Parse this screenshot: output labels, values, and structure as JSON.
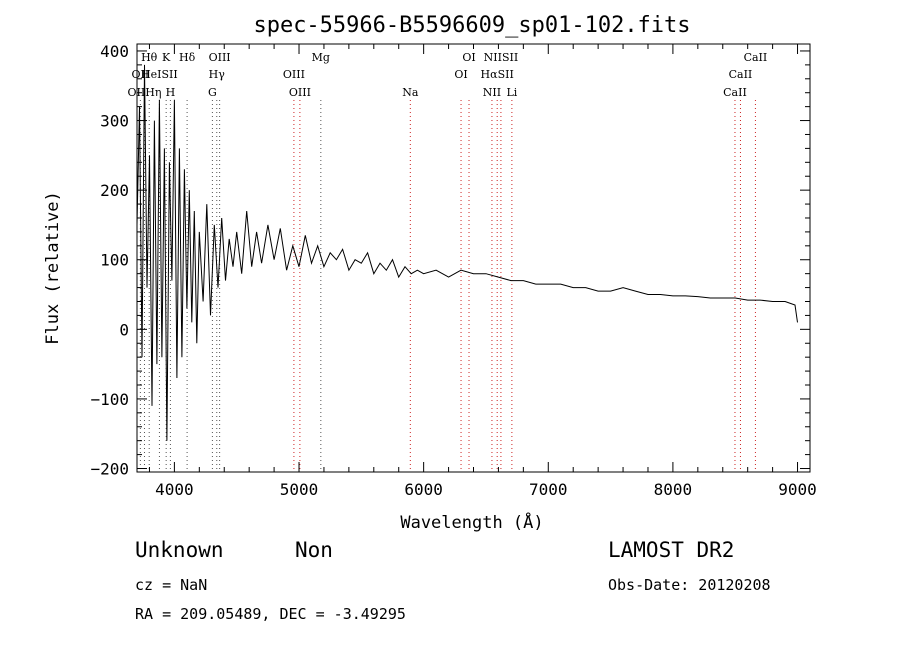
{
  "chart_data": {
    "type": "line",
    "title": "spec-55966-B5596609_sp01-102.fits",
    "xlabel": "Wavelength (Å)",
    "ylabel": "Flux (relative)",
    "xlim": [
      3700,
      9100
    ],
    "ylim": [
      -205,
      410
    ],
    "xticks": [
      4000,
      5000,
      6000,
      7000,
      8000,
      9000
    ],
    "yticks": [
      -200,
      -100,
      0,
      100,
      200,
      300,
      400
    ],
    "grid": false,
    "series": [
      {
        "x": [
          3700,
          3720,
          3740,
          3760,
          3780,
          3800,
          3820,
          3840,
          3860,
          3880,
          3900,
          3920,
          3940,
          3960,
          3980,
          4000,
          4020,
          4040,
          4060,
          4080,
          4100,
          4120,
          4140,
          4160,
          4180,
          4200,
          4230,
          4260,
          4290,
          4320,
          4350,
          4380,
          4410,
          4440,
          4470,
          4500,
          4540,
          4580,
          4620,
          4660,
          4700,
          4750,
          4800,
          4850,
          4900,
          4950,
          5000,
          5050,
          5100,
          5150,
          5200,
          5250,
          5300,
          5350,
          5400,
          5450,
          5500,
          5550,
          5600,
          5650,
          5700,
          5750,
          5800,
          5850,
          5900,
          5950,
          6000,
          6100,
          6200,
          6300,
          6400,
          6500,
          6600,
          6700,
          6800,
          6900,
          7000,
          7100,
          7200,
          7300,
          7400,
          7500,
          7600,
          7700,
          7800,
          7900,
          8000,
          8100,
          8200,
          8300,
          8400,
          8500,
          8600,
          8700,
          8800,
          8900,
          8980,
          9000
        ],
        "values": [
          150,
          320,
          -40,
          380,
          60,
          250,
          -110,
          300,
          -50,
          330,
          -40,
          260,
          -160,
          240,
          70,
          330,
          -70,
          260,
          -40,
          230,
          30,
          200,
          10,
          170,
          -20,
          140,
          40,
          180,
          20,
          150,
          60,
          160,
          70,
          130,
          90,
          140,
          80,
          170,
          90,
          140,
          95,
          150,
          100,
          145,
          85,
          120,
          90,
          135,
          95,
          120,
          90,
          110,
          100,
          115,
          85,
          100,
          95,
          110,
          80,
          95,
          85,
          100,
          75,
          90,
          80,
          85,
          80,
          85,
          75,
          85,
          80,
          80,
          75,
          70,
          70,
          65,
          65,
          65,
          60,
          60,
          55,
          55,
          60,
          55,
          50,
          50,
          48,
          48,
          47,
          45,
          45,
          45,
          42,
          42,
          40,
          40,
          35,
          10
        ]
      }
    ],
    "spectral_lines": [
      {
        "name": "Hθ",
        "x": 3798,
        "row": 0,
        "color": "#555555"
      },
      {
        "name": "K",
        "x": 3934,
        "row": 0,
        "color": "#555555"
      },
      {
        "name": "Hδ",
        "x": 4102,
        "row": 0,
        "color": "#555555"
      },
      {
        "name": "OIII",
        "x": 4363,
        "row": 0,
        "color": "#555555"
      },
      {
        "name": "Mg",
        "x": 5175,
        "row": 0,
        "color": "#555555"
      },
      {
        "name": "OI",
        "x": 6364,
        "row": 0,
        "color": "#cc2222"
      },
      {
        "name": "NIISII",
        "x": 6620,
        "row": 0,
        "color": "#cc2222"
      },
      {
        "name": "CaII",
        "x": 8662,
        "row": 0,
        "color": "#cc2222"
      },
      {
        "name": "OII",
        "x": 3727,
        "row": 1,
        "color": "#555555"
      },
      {
        "name": "HeISII",
        "x": 3880,
        "row": 1,
        "color": "#555555"
      },
      {
        "name": "Hγ",
        "x": 4340,
        "row": 1,
        "color": "#555555"
      },
      {
        "name": "OIII",
        "x": 4959,
        "row": 1,
        "color": "#cc2222"
      },
      {
        "name": "OI",
        "x": 6300,
        "row": 1,
        "color": "#cc2222"
      },
      {
        "name": "HαSII",
        "x": 6590,
        "row": 1,
        "color": "#cc2222"
      },
      {
        "name": "CaII",
        "x": 8542,
        "row": 1,
        "color": "#cc2222"
      },
      {
        "name": "OIIHη",
        "x": 3760,
        "row": 2,
        "color": "#555555"
      },
      {
        "name": "H",
        "x": 3968,
        "row": 2,
        "color": "#555555"
      },
      {
        "name": "G",
        "x": 4305,
        "row": 2,
        "color": "#555555"
      },
      {
        "name": "OIII",
        "x": 5007,
        "row": 2,
        "color": "#cc2222"
      },
      {
        "name": "Na",
        "x": 5893,
        "row": 2,
        "color": "#cc2222"
      },
      {
        "name": "NII",
        "x": 6548,
        "row": 2,
        "color": "#cc2222"
      },
      {
        "name": "Li",
        "x": 6708,
        "row": 2,
        "color": "#cc2222"
      },
      {
        "name": "CaII",
        "x": 8498,
        "row": 2,
        "color": "#cc2222"
      }
    ]
  },
  "info": {
    "class": "Unknown",
    "subclass": "Non",
    "survey": "LAMOST DR2",
    "cz": "cz = NaN",
    "obs_date": "Obs-Date: 20120208",
    "coords": "RA = 209.05489, DEC =  -3.49295"
  }
}
